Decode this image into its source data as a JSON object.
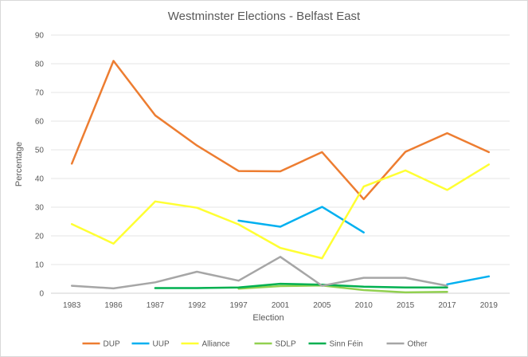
{
  "chart_data": {
    "type": "line",
    "title": "Westminster Elections - Belfast East",
    "xlabel": "Election",
    "ylabel": "Percentage",
    "categories": [
      "1983",
      "1986",
      "1987",
      "1992",
      "1997",
      "2001",
      "2005",
      "2010",
      "2015",
      "2017",
      "2019"
    ],
    "ylim": [
      0,
      90
    ],
    "yticks": [
      "0",
      "10",
      "20",
      "30",
      "40",
      "50",
      "60",
      "70",
      "80",
      "90"
    ],
    "grid": true,
    "legend_position": "bottom",
    "series": [
      {
        "name": "DUP",
        "color": "#ED7D31",
        "values": [
          45.2,
          81.0,
          62.0,
          51.5,
          42.6,
          42.5,
          49.2,
          32.8,
          49.3,
          55.8,
          49.2
        ]
      },
      {
        "name": "UUP",
        "color": "#00B0F0",
        "values": [
          null,
          null,
          null,
          null,
          25.3,
          23.2,
          30.1,
          21.2,
          null,
          3.1,
          5.9
        ]
      },
      {
        "name": "Alliance",
        "color": "#FFFF33",
        "values": [
          24.1,
          17.3,
          32.0,
          29.8,
          24.0,
          15.8,
          12.2,
          37.2,
          42.8,
          36.0,
          44.9
        ]
      },
      {
        "name": "SDLP",
        "color": "#92D050",
        "values": [
          null,
          null,
          null,
          null,
          1.6,
          2.5,
          2.7,
          1.1,
          0.3,
          0.5,
          null
        ]
      },
      {
        "name": "Sinn Féin",
        "color": "#00B050",
        "values": [
          null,
          null,
          1.8,
          1.8,
          2.0,
          3.3,
          3.0,
          2.3,
          2.0,
          2.0,
          null
        ]
      },
      {
        "name": "Other",
        "color": "#A6A6A6",
        "values": [
          2.6,
          1.7,
          3.8,
          7.5,
          4.4,
          12.7,
          2.6,
          5.4,
          5.4,
          2.6,
          null
        ]
      }
    ]
  }
}
